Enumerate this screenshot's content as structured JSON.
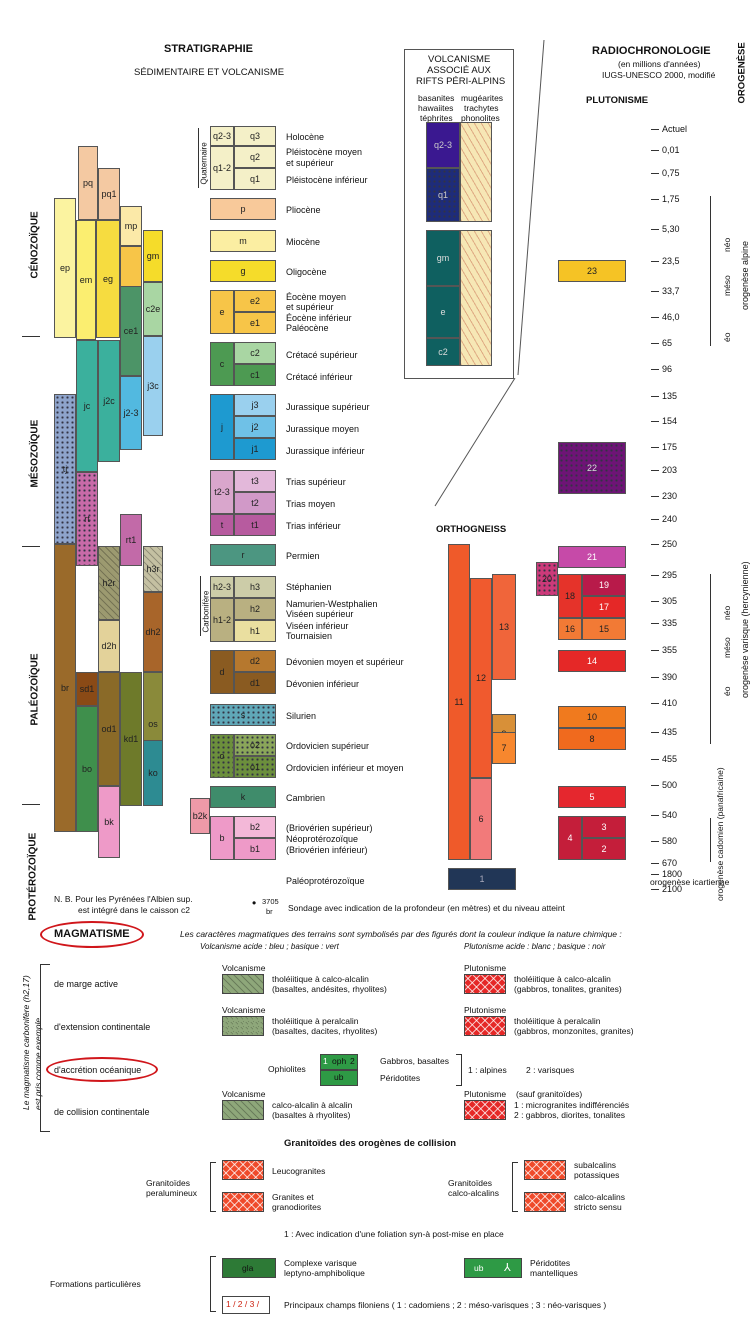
{
  "headers": {
    "strat_title": "STRATIGRAPHIE",
    "strat_sub": "SÉDIMENTAIRE ET VOLCANISME",
    "volc_title": [
      "VOLCANISME",
      "ASSOCIÉ AUX",
      "RIFTS PÉRI-ALPINS"
    ],
    "volc_left": [
      "basanites",
      "hawaiites",
      "téphrites"
    ],
    "volc_right": [
      "mugéarites",
      "trachytes",
      "phonolites"
    ],
    "radio_title": "RADIOCHRONOLOGIE",
    "radio_sub1": "(en millions d'années)",
    "radio_sub2": "IUGS-UNESCO 2000, modifié",
    "plutonisme": "PLUTONISME",
    "orthogneiss": "ORTHOGNEISS",
    "orogenese": "OROGENÈSE"
  },
  "eras": [
    "CÉNOZOÏQUE",
    "MÉSOZOÏQUE",
    "PALÉOZOÏQUE",
    "PROTÉROZOÏQUE"
  ],
  "quaternaire": "Quaternaire",
  "carbonifere": "Carbonifère",
  "legend_rows": [
    {
      "code": "q3",
      "label": "Holocène"
    },
    {
      "code": "q2",
      "label": "Pléistocène moyen\net supérieur"
    },
    {
      "code": "q1",
      "label": "Pléistocène inférieur"
    },
    {
      "code": "p",
      "label": "Pliocène"
    },
    {
      "code": "m",
      "label": "Miocène"
    },
    {
      "code": "g",
      "label": "Oligocène"
    },
    {
      "code": "e2",
      "label": "Éocène moyen\net supérieur"
    },
    {
      "code": "e1",
      "label": "Éocène inférieur\nPaléocène"
    },
    {
      "code": "c2",
      "label": "Crétacé supérieur"
    },
    {
      "code": "c1",
      "label": "Crétacé inférieur"
    },
    {
      "code": "j3",
      "label": "Jurassique supérieur"
    },
    {
      "code": "j2",
      "label": "Jurassique moyen"
    },
    {
      "code": "j1",
      "label": "Jurassique inférieur"
    },
    {
      "code": "t3",
      "label": "Trias supérieur"
    },
    {
      "code": "t2",
      "label": "Trias moyen"
    },
    {
      "code": "t1",
      "label": "Trias inférieur"
    },
    {
      "code": "r",
      "label": "Permien"
    },
    {
      "code": "h3",
      "label": "Stéphanien"
    },
    {
      "code": "h2",
      "label": "Namurien-Westphalien\nViséen supérieur"
    },
    {
      "code": "h1",
      "label": "Viséen inférieur\nTournaisien"
    },
    {
      "code": "d2",
      "label": "Dévonien moyen et supérieur"
    },
    {
      "code": "d1",
      "label": "Dévonien inférieur"
    },
    {
      "code": "s",
      "label": "Silurien"
    },
    {
      "code": "o2",
      "label": "Ordovicien supérieur"
    },
    {
      "code": "o1",
      "label": "Ordovicien inférieur et moyen"
    },
    {
      "code": "k",
      "label": "Cambrien"
    },
    {
      "code": "b2",
      "label": "(Briovérien supérieur)\nNéoprotérozoïque"
    },
    {
      "code": "b1",
      "label": "(Briovérien inférieur)"
    },
    {
      "code": "",
      "label": "Paléoprotérozoïque"
    }
  ],
  "ages": [
    "Actuel",
    "0,01",
    "0,75",
    "1,75",
    "5,30",
    "23,5",
    "33,7",
    "46,0",
    "65",
    "96",
    "135",
    "154",
    "175",
    "203",
    "230",
    "240",
    "250",
    "295",
    "305",
    "335",
    "355",
    "390",
    "410",
    "435",
    "455",
    "500",
    "540",
    "580",
    "670",
    "1800",
    "2100"
  ],
  "orogeny_labels": {
    "alpine": "orogenèse alpine",
    "varisque": "orogenèse varisque (hercynienne)",
    "cadomien": "orogenèse cadomien (panafricaine)",
    "icartienne": "orogenèse icartienne",
    "neo": "néo",
    "meso": "méso",
    "eo": "éo"
  },
  "pluton_numbers": [
    "23",
    "22",
    "21",
    "20",
    "18",
    "19",
    "17",
    "16",
    "15",
    "14",
    "13",
    "12",
    "11",
    "10",
    "9",
    "8",
    "7",
    "6",
    "5",
    "4",
    "3",
    "2",
    "1"
  ],
  "notes": {
    "nb1": "N. B.  Pour les Pyrénées l'Albien sup.",
    "nb2": "est intégré dans le caisson c2",
    "sond_num": "3705",
    "sond_code": "br",
    "sondage": "Sondage avec indication de la profondeur (en mètres) et du niveau atteint"
  },
  "magma": {
    "title": "MAGMATISME",
    "intro": "Les caractères magmatiques des terrains sont symbolisés par des figurés dont la couleur indique la nature chimique :",
    "volc_hdr": "Volcanisme acide : bleu ; basique : vert",
    "pluto_hdr": "Plutonisme acide : blanc ; basique : noir",
    "side": [
      "Le magmatisme carbonifère (h2,17)",
      "est pris comme exemple"
    ],
    "rows": [
      {
        "ctx": "de marge active",
        "vlabel": "Volcanisme",
        "vtxt": "tholéiitique à calco-alcalin\n(basaltes, andésites, rhyolites)",
        "plabel": "Plutonisme",
        "ptxt": "tholéiitique à calco-alcalin\n(gabbros, tonalites, granites)"
      },
      {
        "ctx": "d'extension continentale",
        "vlabel": "Volcanisme",
        "vtxt": "tholéiitique à peralcalin\n(basaltes, dacites, rhyolites)",
        "plabel": "Plutonisme",
        "ptxt": "tholéiitique à peralcalin\n(gabbros, monzonites, granites)"
      },
      {
        "ctx": "d'accrétion océanique"
      },
      {
        "ctx": "de collision continentale",
        "vlabel": "Volcanisme",
        "vtxt": "calco-alcalin à alcalin\n(basaltes à rhyolites)",
        "plabel": "Plutonisme",
        "pnote": "(sauf granitoïdes)",
        "ptxt": "1 : microgranites indifférenciés\n2 : gabbros, diorites, tonalites"
      }
    ],
    "ophio": {
      "label": "Ophiolites",
      "oph": "oph",
      "ub": "ub",
      "n1": "1",
      "n2": "2",
      "gab": "Gabbros, basaltes",
      "per": "Péridotites",
      "alp": "1 : alpines",
      "var": "2 : varisques"
    },
    "granit_title": "Granitoïdes des orogènes de collision",
    "granit_per": [
      "Granitoïdes",
      "peralumineux"
    ],
    "granit_calc": [
      "Granitoïdes",
      "calco-alcalins"
    ],
    "leuco": "Leucogranites",
    "granites": "Granites et\ngranodiorites",
    "subalc": "subalcalins\npotassiques",
    "calcalc": "calco-alcalins\nstricto sensu",
    "foliation": "1 : Avec indication d'une foliation syn-à post-mise en place",
    "formations": "Formations particulières",
    "gla": "gla",
    "complexe": "Complexe varisque\nleptyno-amphibolique",
    "ub2": "ub",
    "perido": "Péridotites\nmantelliques",
    "filons": "Principaux champs filoniens ( 1 : cadomiens ; 2 : méso-varisques ; 3 : néo-varisques )",
    "filon_nums": "1 / 2 / 3 /"
  },
  "colors": {
    "q": "#f4f0b8",
    "p": "#f8c99a",
    "m": "#fbeea2",
    "g": "#f5dc2a",
    "e": "#f7c548",
    "c": "#5aa05a",
    "c2": "#a9d6a3",
    "j": "#1e9ad0",
    "j2": "#6fc1e7",
    "t": "#b75b9f",
    "t2": "#d199c8",
    "r": "#4c9681",
    "h": "#b9b081",
    "d": "#8a5b21",
    "s": "#60a8b8",
    "o": "#6c8f3c",
    "k": "#3f8c6b",
    "b": "#e8a0c8",
    "pal": "#213656",
    "volcA": "#3a1890",
    "volcB": "#0f6060",
    "pluto": "#ef5a2a",
    "red": "#e52827",
    "oval": "#d0161b"
  }
}
